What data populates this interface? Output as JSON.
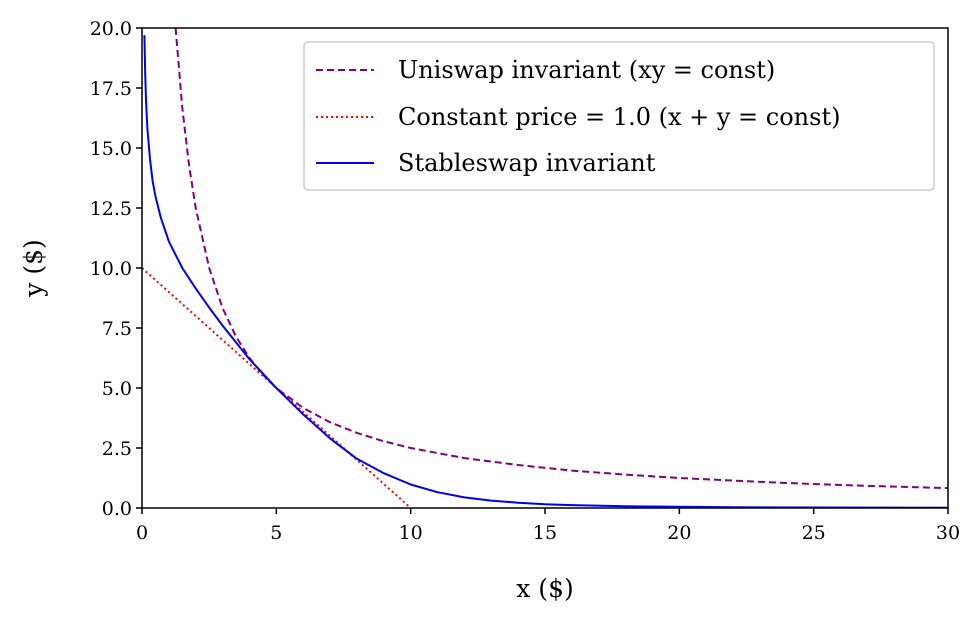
{
  "chart_data": {
    "type": "line",
    "title": "",
    "xlabel": "x ($)",
    "ylabel": "y ($)",
    "xlim": [
      0,
      30
    ],
    "ylim": [
      0,
      20
    ],
    "x_ticks": [
      "0",
      "5",
      "10",
      "15",
      "20",
      "25",
      "30"
    ],
    "y_ticks": [
      "0.0",
      "2.5",
      "5.0",
      "7.5",
      "10.0",
      "12.5",
      "15.0",
      "17.5",
      "20.0"
    ],
    "grid": false,
    "legend_position": "top-right",
    "series": [
      {
        "name": "Uniswap invariant (xy = const)",
        "style": "dashed",
        "color": "#800080",
        "x": [
          1.25,
          1.5,
          1.75,
          2,
          2.5,
          3,
          3.5,
          4,
          4.5,
          5,
          6,
          7,
          8,
          9,
          10,
          12,
          14,
          16,
          18,
          20,
          22,
          24,
          26,
          28,
          30
        ],
        "y": [
          20.0,
          16.67,
          14.29,
          12.5,
          10.0,
          8.33,
          7.14,
          6.25,
          5.56,
          5.0,
          4.17,
          3.57,
          3.13,
          2.78,
          2.5,
          2.08,
          1.79,
          1.56,
          1.39,
          1.25,
          1.14,
          1.04,
          0.96,
          0.89,
          0.83
        ]
      },
      {
        "name": "Constant price = 1.0 (x + y = const)",
        "style": "dotted",
        "color": "#ff0000",
        "x": [
          0,
          10
        ],
        "y": [
          10,
          0
        ]
      },
      {
        "name": "Stableswap invariant",
        "style": "solid",
        "color": "#0000ee",
        "x": [
          0.09,
          0.12,
          0.15,
          0.2,
          0.3,
          0.4,
          0.5,
          0.7,
          1.0,
          1.5,
          2.0,
          2.5,
          3.0,
          3.5,
          4.0,
          4.5,
          5.0,
          5.5,
          6.0,
          7.0,
          8.0,
          9.0,
          10.0,
          11.0,
          12.0,
          13.0,
          14.0,
          15.0,
          16.0,
          18.0,
          20.0,
          22.0,
          25.0,
          30.0
        ],
        "y": [
          19.7,
          18.1,
          17.0,
          15.8,
          14.5,
          13.6,
          13.0,
          12.1,
          11.1,
          10.0,
          9.15,
          8.35,
          7.6,
          6.9,
          6.2,
          5.6,
          5.0,
          4.45,
          3.9,
          2.9,
          2.05,
          1.45,
          0.98,
          0.66,
          0.44,
          0.31,
          0.22,
          0.16,
          0.12,
          0.07,
          0.05,
          0.03,
          0.02,
          0.01
        ]
      }
    ]
  }
}
